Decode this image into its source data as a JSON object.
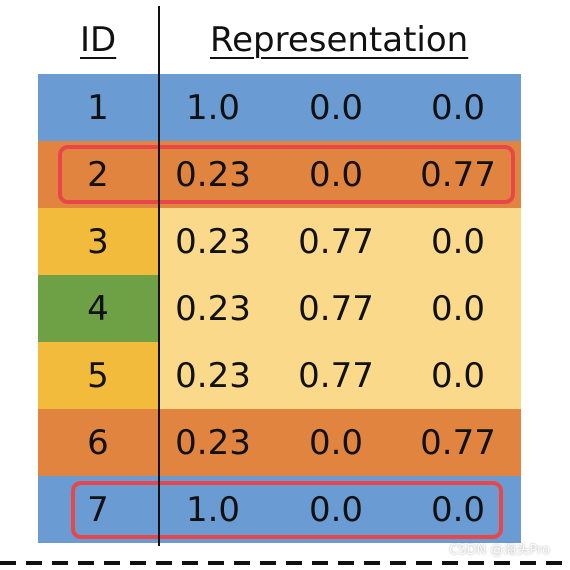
{
  "headers": {
    "id": "ID",
    "representation": "Representation"
  },
  "rows": [
    {
      "id": "1",
      "values": [
        "1.0",
        "0.0",
        "0.0"
      ],
      "id_color": "#6a9bd3",
      "rep_color": "#6a9bd3"
    },
    {
      "id": "2",
      "values": [
        "0.23",
        "0.0",
        "0.77"
      ],
      "id_color": "#e0843f",
      "rep_color": "#e0843f"
    },
    {
      "id": "3",
      "values": [
        "0.23",
        "0.77",
        "0.0"
      ],
      "id_color": "#f2bb3c",
      "rep_color": "#fad98a"
    },
    {
      "id": "4",
      "values": [
        "0.23",
        "0.77",
        "0.0"
      ],
      "id_color": "#6ea146",
      "rep_color": "#fad98a"
    },
    {
      "id": "5",
      "values": [
        "0.23",
        "0.77",
        "0.0"
      ],
      "id_color": "#f2bb3c",
      "rep_color": "#fad98a"
    },
    {
      "id": "6",
      "values": [
        "0.23",
        "0.0",
        "0.77"
      ],
      "id_color": "#e0843f",
      "rep_color": "#e0843f"
    },
    {
      "id": "7",
      "values": [
        "1.0",
        "0.0",
        "0.0"
      ],
      "id_color": "#6a9bd3",
      "rep_color": "#6a9bd3"
    }
  ],
  "highlighted_rows": [
    "2",
    "7"
  ],
  "highlight_color": "#e8474a",
  "watermark": "CSDN @海头Pro"
}
